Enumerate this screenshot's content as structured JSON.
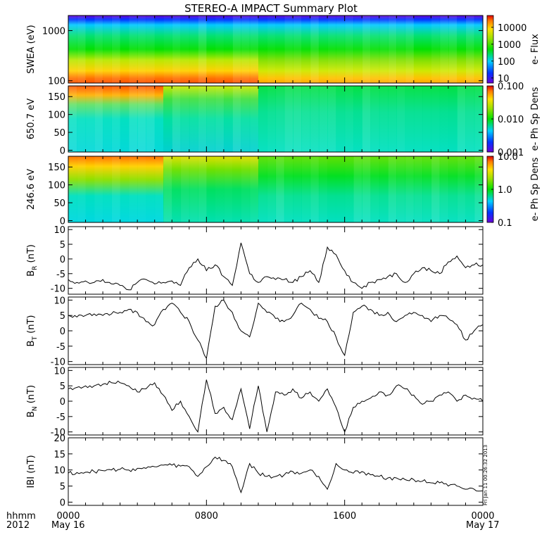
{
  "title": "STEREO-A IMPACT Summary Plot",
  "stamp": "Fri Jan 11 00:26:32 2013",
  "colors": {
    "line": "#000000",
    "axis": "#000000",
    "background": "#ffffff"
  },
  "chart_data": [
    {
      "type": "heatmap",
      "name": "swea",
      "ylabel": "SWEA (eV)",
      "yscale": "log",
      "ylim": [
        90,
        2000
      ],
      "yticks": [
        {
          "v": 1000,
          "label": "1000"
        },
        {
          "v": 100,
          "label": "100"
        }
      ],
      "colorbar": {
        "label": "e- Flux",
        "scale": "log",
        "range": [
          5,
          50000
        ],
        "ticks": [
          {
            "v": 10000,
            "label": "10000"
          },
          {
            "v": 1000,
            "label": "1000"
          },
          {
            "v": 100,
            "label": "100"
          },
          {
            "v": 10,
            "label": "10"
          }
        ]
      }
    },
    {
      "type": "heatmap",
      "name": "pad650",
      "ylabel": "650.7 eV",
      "yscale": "linear",
      "ylim": [
        -5,
        180
      ],
      "yticks": [
        {
          "v": 150,
          "label": "150"
        },
        {
          "v": 100,
          "label": "100"
        },
        {
          "v": 50,
          "label": "50"
        },
        {
          "v": 0,
          "label": "0"
        }
      ],
      "colorbar": {
        "label": "e- Ph Sp Dens",
        "scale": "log",
        "range": [
          0.001,
          0.1
        ],
        "ticks": [
          {
            "v": 0.1,
            "label": "0.100"
          },
          {
            "v": 0.01,
            "label": "0.010"
          },
          {
            "v": 0.001,
            "label": "0.001"
          }
        ]
      }
    },
    {
      "type": "heatmap",
      "name": "pad246",
      "ylabel": "246.6 eV",
      "yscale": "linear",
      "ylim": [
        -5,
        180
      ],
      "yticks": [
        {
          "v": 150,
          "label": "150"
        },
        {
          "v": 100,
          "label": "100"
        },
        {
          "v": 50,
          "label": "50"
        },
        {
          "v": 0,
          "label": "0"
        }
      ],
      "colorbar": {
        "label": "e- Ph Sp Dens",
        "scale": "log",
        "range": [
          0.1,
          10
        ],
        "ticks": [
          {
            "v": 10,
            "label": "10.0"
          },
          {
            "v": 1,
            "label": "1.0"
          },
          {
            "v": 0.1,
            "label": "0.1"
          }
        ]
      }
    },
    {
      "type": "line",
      "name": "br",
      "ylabel": "B",
      "ylabel_sub": "R",
      "ylabel_unit": "(nT)",
      "ylim": [
        -12,
        11
      ],
      "yticks": [
        {
          "v": 10,
          "label": "10"
        },
        {
          "v": 5,
          "label": "5"
        },
        {
          "v": 0,
          "label": "0"
        },
        {
          "v": -5,
          "label": "-5"
        },
        {
          "v": -10,
          "label": "-10"
        }
      ],
      "x": [
        0,
        0.5,
        1,
        1.5,
        2,
        2.5,
        3,
        3.5,
        4,
        4.5,
        5,
        5.5,
        6,
        6.5,
        7,
        7.5,
        8,
        8.5,
        9,
        9.5,
        10,
        10.5,
        11,
        11.5,
        12,
        12.5,
        13,
        13.5,
        14,
        14.5,
        15,
        15.5,
        16,
        16.5,
        17,
        17.5,
        18,
        18.5,
        19,
        19.5,
        20,
        20.5,
        21,
        21.5,
        22,
        22.5,
        23,
        23.5,
        24
      ],
      "values": [
        -7,
        -8,
        -7.5,
        -8,
        -7,
        -8.5,
        -9,
        -10.5,
        -8,
        -7,
        -8.5,
        -8,
        -7.5,
        -9,
        -3,
        0,
        -4,
        -2,
        -6,
        -9,
        5.5,
        -5,
        -8,
        -6,
        -7,
        -7,
        -8,
        -6,
        -4,
        -8,
        4,
        1.5,
        -4,
        -8,
        -10,
        -8,
        -7,
        -6,
        -5,
        -8,
        -5,
        -3,
        -4,
        -5,
        -1,
        1,
        -3,
        -2,
        -2
      ]
    },
    {
      "type": "line",
      "name": "bt",
      "ylabel": "B",
      "ylabel_sub": "T",
      "ylabel_unit": "(nT)",
      "ylim": [
        -11,
        11
      ],
      "yticks": [
        {
          "v": 10,
          "label": "10"
        },
        {
          "v": 5,
          "label": "5"
        },
        {
          "v": 0,
          "label": "0"
        },
        {
          "v": -5,
          "label": "-5"
        },
        {
          "v": -10,
          "label": "-10"
        }
      ],
      "x": [
        0,
        0.5,
        1,
        1.5,
        2,
        2.5,
        3,
        3.5,
        4,
        4.5,
        5,
        5.5,
        6,
        6.5,
        7,
        7.5,
        8,
        8.5,
        9,
        9.5,
        10,
        10.5,
        11,
        11.5,
        12,
        12.5,
        13,
        13.5,
        14,
        14.5,
        15,
        15.5,
        16,
        16.5,
        17,
        17.5,
        18,
        18.5,
        19,
        19.5,
        20,
        20.5,
        21,
        21.5,
        22,
        22.5,
        23,
        23.5,
        24
      ],
      "values": [
        5,
        4.5,
        5,
        5.5,
        5,
        5.5,
        6,
        7,
        6,
        3,
        2,
        7,
        9,
        6,
        3,
        -3,
        -9,
        8,
        10,
        6,
        0,
        -2,
        9,
        6,
        4,
        3,
        5,
        9,
        7,
        4,
        3,
        -2,
        -8,
        6,
        8,
        7,
        5,
        6,
        3,
        5,
        6,
        5,
        3,
        5,
        4,
        2,
        -3,
        0,
        2
      ]
    },
    {
      "type": "line",
      "name": "bn",
      "ylabel": "B",
      "ylabel_sub": "N",
      "ylabel_unit": "(nT)",
      "ylim": [
        -11,
        11
      ],
      "yticks": [
        {
          "v": 10,
          "label": "10"
        },
        {
          "v": 5,
          "label": "5"
        },
        {
          "v": 0,
          "label": "0"
        },
        {
          "v": -5,
          "label": "-5"
        },
        {
          "v": -10,
          "label": "-10"
        }
      ],
      "x": [
        0,
        0.5,
        1,
        1.5,
        2,
        2.5,
        3,
        3.5,
        4,
        4.5,
        5,
        5.5,
        6,
        6.5,
        7,
        7.5,
        8,
        8.5,
        9,
        9.5,
        10,
        10.5,
        11,
        11.5,
        12,
        12.5,
        13,
        13.5,
        14,
        14.5,
        15,
        15.5,
        16,
        16.5,
        17,
        17.5,
        18,
        18.5,
        19,
        19.5,
        20,
        20.5,
        21,
        21.5,
        22,
        22.5,
        23,
        23.5,
        24
      ],
      "values": [
        4,
        4.5,
        5,
        5,
        5.5,
        6,
        6,
        5,
        3,
        4,
        6,
        2,
        -3,
        0,
        -5,
        -10,
        7,
        -4,
        -2,
        -6,
        4,
        -9,
        5,
        -10,
        3,
        2,
        4,
        1,
        3,
        0,
        4,
        -2,
        -10,
        -2,
        0,
        1,
        3,
        2,
        5,
        4,
        2,
        -1,
        0,
        2,
        3,
        0,
        2,
        1,
        0
      ]
    },
    {
      "type": "line",
      "name": "bmag",
      "ylabel": "IBI (nT)",
      "ylim": [
        -1,
        20
      ],
      "yticks": [
        {
          "v": 20,
          "label": "20"
        },
        {
          "v": 15,
          "label": "15"
        },
        {
          "v": 10,
          "label": "10"
        },
        {
          "v": 5,
          "label": "5"
        },
        {
          "v": 0,
          "label": "0"
        }
      ],
      "x": [
        0,
        0.5,
        1,
        1.5,
        2,
        2.5,
        3,
        3.5,
        4,
        4.5,
        5,
        5.5,
        6,
        6.5,
        7,
        7.5,
        8,
        8.5,
        9,
        9.5,
        10,
        10.5,
        11,
        11.5,
        12,
        12.5,
        13,
        13.5,
        14,
        14.5,
        15,
        15.5,
        16,
        16.5,
        17,
        17.5,
        18,
        18.5,
        19,
        19.5,
        20,
        20.5,
        21,
        21.5,
        22,
        22.5,
        23,
        23.5,
        24
      ],
      "values": [
        9,
        9.2,
        9.3,
        9.5,
        9.8,
        10,
        10.2,
        10,
        10.5,
        10.5,
        11,
        11.5,
        11.5,
        11.2,
        11,
        8,
        11,
        14,
        13,
        11,
        3,
        12,
        9,
        8,
        8,
        8.5,
        9.5,
        9,
        10,
        8,
        4,
        12,
        10,
        9,
        9.5,
        8.5,
        8,
        7.5,
        7.5,
        7,
        7,
        6.5,
        6,
        6,
        5,
        5,
        4,
        4,
        3.5
      ]
    }
  ],
  "xaxis": {
    "range": [
      0,
      24
    ],
    "ticks": [
      {
        "v": 0,
        "label": "0000"
      },
      {
        "v": 8,
        "label": "0800"
      },
      {
        "v": 16,
        "label": "1600"
      },
      {
        "v": 24,
        "label": "0000"
      }
    ],
    "date_left": "May 16",
    "date_right": "May 17",
    "row_label": "hhmm",
    "year_label": "2012"
  }
}
